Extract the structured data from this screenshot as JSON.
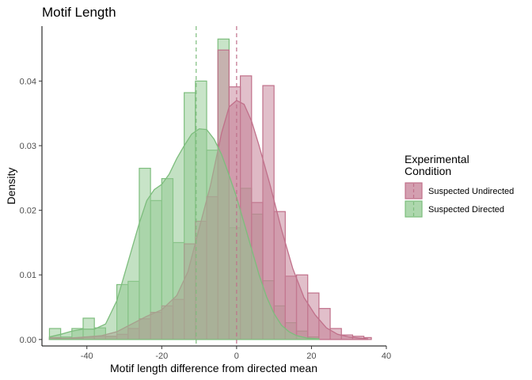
{
  "chart_data": {
    "type": "histogram",
    "title": "Motif Length",
    "xlabel": "Motif length difference from directed mean",
    "ylabel": "Density",
    "xlim": [
      -52,
      40
    ],
    "ylim": [
      -0.001,
      0.0485
    ],
    "x_ticks": [
      -40,
      -20,
      0,
      20,
      40
    ],
    "y_ticks": [
      0.0,
      0.01,
      0.02,
      0.03,
      0.04
    ],
    "y_tick_labels": [
      "0.00",
      "0.01",
      "0.02",
      "0.03",
      "0.04"
    ],
    "x_tick_labels": [
      "-40",
      "-20",
      "0",
      "20",
      "40"
    ],
    "grid": false,
    "legend": {
      "title": "Experimental\nCondition",
      "title_lines": [
        "Experimental",
        "Condition"
      ],
      "placement": "right"
    },
    "series": [
      {
        "name": "Suspected Undirected",
        "color": "#c0708a",
        "fill": "#c47f95",
        "mean_line": 0,
        "bins": [
          {
            "x0": -50,
            "x1": -47,
            "y": 0.0003
          },
          {
            "x0": -47,
            "x1": -44,
            "y": 0.0002
          },
          {
            "x0": -44,
            "x1": -41,
            "y": 0.0002
          },
          {
            "x0": -41,
            "x1": -38,
            "y": 0.0004
          },
          {
            "x0": -38,
            "x1": -35,
            "y": 0.0005
          },
          {
            "x0": -35,
            "x1": -32,
            "y": 0.0005
          },
          {
            "x0": -32,
            "x1": -29,
            "y": 0.0008
          },
          {
            "x0": -29,
            "x1": -26,
            "y": 0.0017
          },
          {
            "x0": -26,
            "x1": -23,
            "y": 0.0032
          },
          {
            "x0": -23,
            "x1": -20,
            "y": 0.0042
          },
          {
            "x0": -20,
            "x1": -17,
            "y": 0.0052
          },
          {
            "x0": -17,
            "x1": -14,
            "y": 0.0062
          },
          {
            "x0": -14,
            "x1": -11,
            "y": 0.0148
          },
          {
            "x0": -11,
            "x1": -8,
            "y": 0.0183
          },
          {
            "x0": -8,
            "x1": -5,
            "y": 0.0221
          },
          {
            "x0": -5,
            "x1": -2,
            "y": 0.0448
          },
          {
            "x0": -2,
            "x1": 1,
            "y": 0.0391
          },
          {
            "x0": 1,
            "x1": 4,
            "y": 0.0408
          },
          {
            "x0": 4,
            "x1": 7,
            "y": 0.0212
          },
          {
            "x0": 7,
            "x1": 10,
            "y": 0.0393
          },
          {
            "x0": 10,
            "x1": 13,
            "y": 0.0198
          },
          {
            "x0": 13,
            "x1": 16,
            "y": 0.0098
          },
          {
            "x0": 16,
            "x1": 19,
            "y": 0.01
          },
          {
            "x0": 19,
            "x1": 22,
            "y": 0.0072
          },
          {
            "x0": 22,
            "x1": 25,
            "y": 0.0048
          },
          {
            "x0": 25,
            "x1": 28,
            "y": 0.0017
          },
          {
            "x0": 28,
            "x1": 31,
            "y": 0.0007
          },
          {
            "x0": 31,
            "x1": 34,
            "y": 0.0005
          },
          {
            "x0": 34,
            "x1": 36,
            "y": 0.0003
          }
        ],
        "density": [
          [
            -50,
            0.0001
          ],
          [
            -45,
            0.0002
          ],
          [
            -40,
            0.0004
          ],
          [
            -36,
            0.0006
          ],
          [
            -32,
            0.0012
          ],
          [
            -28,
            0.0024
          ],
          [
            -24,
            0.0036
          ],
          [
            -20,
            0.0046
          ],
          [
            -16,
            0.0068
          ],
          [
            -13,
            0.0105
          ],
          [
            -10,
            0.0172
          ],
          [
            -7,
            0.0238
          ],
          [
            -4,
            0.032
          ],
          [
            -2,
            0.036
          ],
          [
            0,
            0.037
          ],
          [
            2,
            0.0364
          ],
          [
            4,
            0.0338
          ],
          [
            6,
            0.03
          ],
          [
            9,
            0.0238
          ],
          [
            12,
            0.017
          ],
          [
            15,
            0.011
          ],
          [
            18,
            0.0065
          ],
          [
            21,
            0.0038
          ],
          [
            24,
            0.0018
          ],
          [
            27,
            0.0008
          ],
          [
            30,
            0.0004
          ],
          [
            33,
            0.0002
          ],
          [
            35,
            0.0001
          ]
        ]
      },
      {
        "name": "Suspected Directed",
        "color": "#7dbd7d",
        "fill": "#92c992",
        "mean_line": -10.8,
        "bins": [
          {
            "x0": -50,
            "x1": -47,
            "y": 0.0017
          },
          {
            "x0": -47,
            "x1": -44,
            "y": 0.0004
          },
          {
            "x0": -44,
            "x1": -41,
            "y": 0.0017
          },
          {
            "x0": -41,
            "x1": -38,
            "y": 0.0033
          },
          {
            "x0": -38,
            "x1": -35,
            "y": 0.0018
          },
          {
            "x0": -35,
            "x1": -32,
            "y": 0.0005
          },
          {
            "x0": -32,
            "x1": -29,
            "y": 0.0085
          },
          {
            "x0": -29,
            "x1": -26,
            "y": 0.009
          },
          {
            "x0": -26,
            "x1": -23,
            "y": 0.0265
          },
          {
            "x0": -23,
            "x1": -20,
            "y": 0.0215
          },
          {
            "x0": -20,
            "x1": -17,
            "y": 0.0249
          },
          {
            "x0": -17,
            "x1": -14,
            "y": 0.015
          },
          {
            "x0": -14,
            "x1": -11,
            "y": 0.0382
          },
          {
            "x0": -11,
            "x1": -8,
            "y": 0.04
          },
          {
            "x0": -8,
            "x1": -5,
            "y": 0.0293
          },
          {
            "x0": -5,
            "x1": -2,
            "y": 0.0465
          },
          {
            "x0": -2,
            "x1": 1,
            "y": 0.0173
          },
          {
            "x0": 1,
            "x1": 4,
            "y": 0.0234
          },
          {
            "x0": 4,
            "x1": 7,
            "y": 0.0194
          },
          {
            "x0": 7,
            "x1": 10,
            "y": 0.0091
          },
          {
            "x0": 10,
            "x1": 13,
            "y": 0.0052
          },
          {
            "x0": 13,
            "x1": 16,
            "y": 0.0026
          },
          {
            "x0": 16,
            "x1": 19,
            "y": 0.0013
          },
          {
            "x0": 19,
            "x1": 22,
            "y": 0.0004
          }
        ],
        "density": [
          [
            -50,
            0.0004
          ],
          [
            -47,
            0.0008
          ],
          [
            -44,
            0.0013
          ],
          [
            -41,
            0.0016
          ],
          [
            -38,
            0.0016
          ],
          [
            -35,
            0.0024
          ],
          [
            -32,
            0.006
          ],
          [
            -29,
            0.012
          ],
          [
            -26,
            0.018
          ],
          [
            -24,
            0.0215
          ],
          [
            -22,
            0.0232
          ],
          [
            -20,
            0.024
          ],
          [
            -18,
            0.0256
          ],
          [
            -16,
            0.028
          ],
          [
            -14,
            0.03
          ],
          [
            -12,
            0.0318
          ],
          [
            -10,
            0.0326
          ],
          [
            -8,
            0.0325
          ],
          [
            -6,
            0.031
          ],
          [
            -4,
            0.0286
          ],
          [
            -2,
            0.0254
          ],
          [
            0,
            0.022
          ],
          [
            2,
            0.018
          ],
          [
            4,
            0.014
          ],
          [
            6,
            0.01
          ],
          [
            8,
            0.0066
          ],
          [
            10,
            0.004
          ],
          [
            12,
            0.0022
          ],
          [
            14,
            0.0012
          ],
          [
            16,
            0.0006
          ],
          [
            19,
            0.0002
          ],
          [
            22,
            0.0001
          ]
        ]
      }
    ]
  }
}
